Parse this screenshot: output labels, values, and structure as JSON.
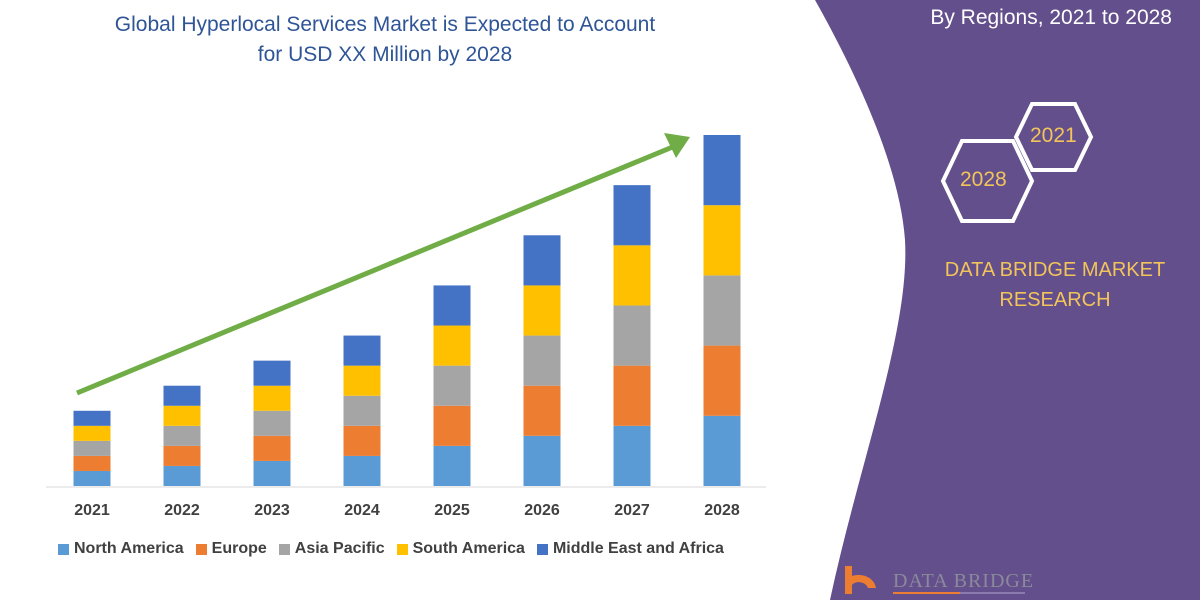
{
  "title_line1": "Global Hyperlocal Services Market is Expected to Account",
  "title_line2": "for USD XX Million by 2028",
  "side_title": "By Regions, 2021 to 2028",
  "hex_years": [
    "2021",
    "2028"
  ],
  "brand_line1": "DATA BRIDGE MARKET",
  "brand_line2": "RESEARCH",
  "logo_text": "DATA BRIDGE",
  "colors": {
    "panel": "#634F8C",
    "arrow": "#70AD47",
    "title": "#2F5597",
    "brand": "#F2C45A"
  },
  "chart_data": {
    "type": "bar",
    "stacked": true,
    "categories": [
      "2021",
      "2022",
      "2023",
      "2024",
      "2025",
      "2026",
      "2027",
      "2028"
    ],
    "series": [
      {
        "name": "North America",
        "color": "#5B9BD5",
        "values": [
          15,
          20,
          25,
          30,
          40,
          50,
          60,
          70
        ]
      },
      {
        "name": "Europe",
        "color": "#ED7D31",
        "values": [
          15,
          20,
          25,
          30,
          40,
          50,
          60,
          70
        ]
      },
      {
        "name": "Asia Pacific",
        "color": "#A5A5A5",
        "values": [
          15,
          20,
          25,
          30,
          40,
          50,
          60,
          70
        ]
      },
      {
        "name": "South America",
        "color": "#FFC000",
        "values": [
          15,
          20,
          25,
          30,
          40,
          50,
          60,
          70
        ]
      },
      {
        "name": "Middle East and Africa",
        "color": "#4472C4",
        "values": [
          15,
          20,
          25,
          30,
          40,
          50,
          60,
          70
        ]
      }
    ],
    "ylim": [
      0,
      350
    ],
    "grid": false,
    "legend": "bottom",
    "trend_arrow": true
  }
}
